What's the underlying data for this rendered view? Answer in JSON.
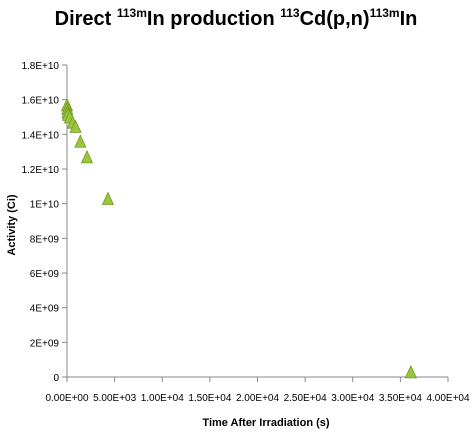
{
  "chart_data": {
    "type": "scatter",
    "title": {
      "parts": [
        {
          "text": "Direct ",
          "sup": false
        },
        {
          "text": "113m",
          "sup": true
        },
        {
          "text": "In production ",
          "sup": false
        },
        {
          "text": "113",
          "sup": true
        },
        {
          "text": "Cd(p,n)",
          "sup": false
        },
        {
          "text": "113m",
          "sup": true
        },
        {
          "text": "In",
          "sup": false
        }
      ]
    },
    "xlabel": "Time After Irradiation (s)",
    "ylabel": "Activity (Ci)",
    "xlim": [
      0,
      40000
    ],
    "ylim": [
      0,
      18000000000
    ],
    "xticks": [
      {
        "value": 0,
        "label": "0.00E+00"
      },
      {
        "value": 5000,
        "label": "5.00E+03"
      },
      {
        "value": 10000,
        "label": "1.00E+04"
      },
      {
        "value": 15000,
        "label": "1.50E+04"
      },
      {
        "value": 20000,
        "label": "2.00E+04"
      },
      {
        "value": 25000,
        "label": "2.50E+04"
      },
      {
        "value": 30000,
        "label": "3.00E+04"
      },
      {
        "value": 35000,
        "label": "3.50E+04"
      },
      {
        "value": 40000,
        "label": "4.00E+04"
      }
    ],
    "yticks": [
      {
        "value": 0,
        "label": "0"
      },
      {
        "value": 2000000000,
        "label": "2E+09"
      },
      {
        "value": 4000000000,
        "label": "4E+09"
      },
      {
        "value": 6000000000,
        "label": "6E+09"
      },
      {
        "value": 8000000000,
        "label": "8E+09"
      },
      {
        "value": 10000000000,
        "label": "1E+10"
      },
      {
        "value": 12000000000,
        "label": "1.2E+10"
      },
      {
        "value": 14000000000,
        "label": "1.4E+10"
      },
      {
        "value": 16000000000,
        "label": "1.6E+10"
      },
      {
        "value": 18000000000,
        "label": "1.8E+10"
      }
    ],
    "grid": false,
    "legend": "none",
    "marker": "triangle",
    "marker_color": "#9BC53D",
    "series": [
      {
        "points": [
          {
            "x": 0,
            "y": 15700000000
          },
          {
            "x": 30,
            "y": 15500000000
          },
          {
            "x": 60,
            "y": 15300000000
          },
          {
            "x": 100,
            "y": 15150000000
          },
          {
            "x": 300,
            "y": 15000000000
          },
          {
            "x": 600,
            "y": 14700000000
          },
          {
            "x": 900,
            "y": 14450000000
          },
          {
            "x": 1400,
            "y": 13600000000
          },
          {
            "x": 2100,
            "y": 12700000000
          },
          {
            "x": 4300,
            "y": 10300000000
          },
          {
            "x": 36100,
            "y": 300000000
          }
        ]
      }
    ]
  }
}
